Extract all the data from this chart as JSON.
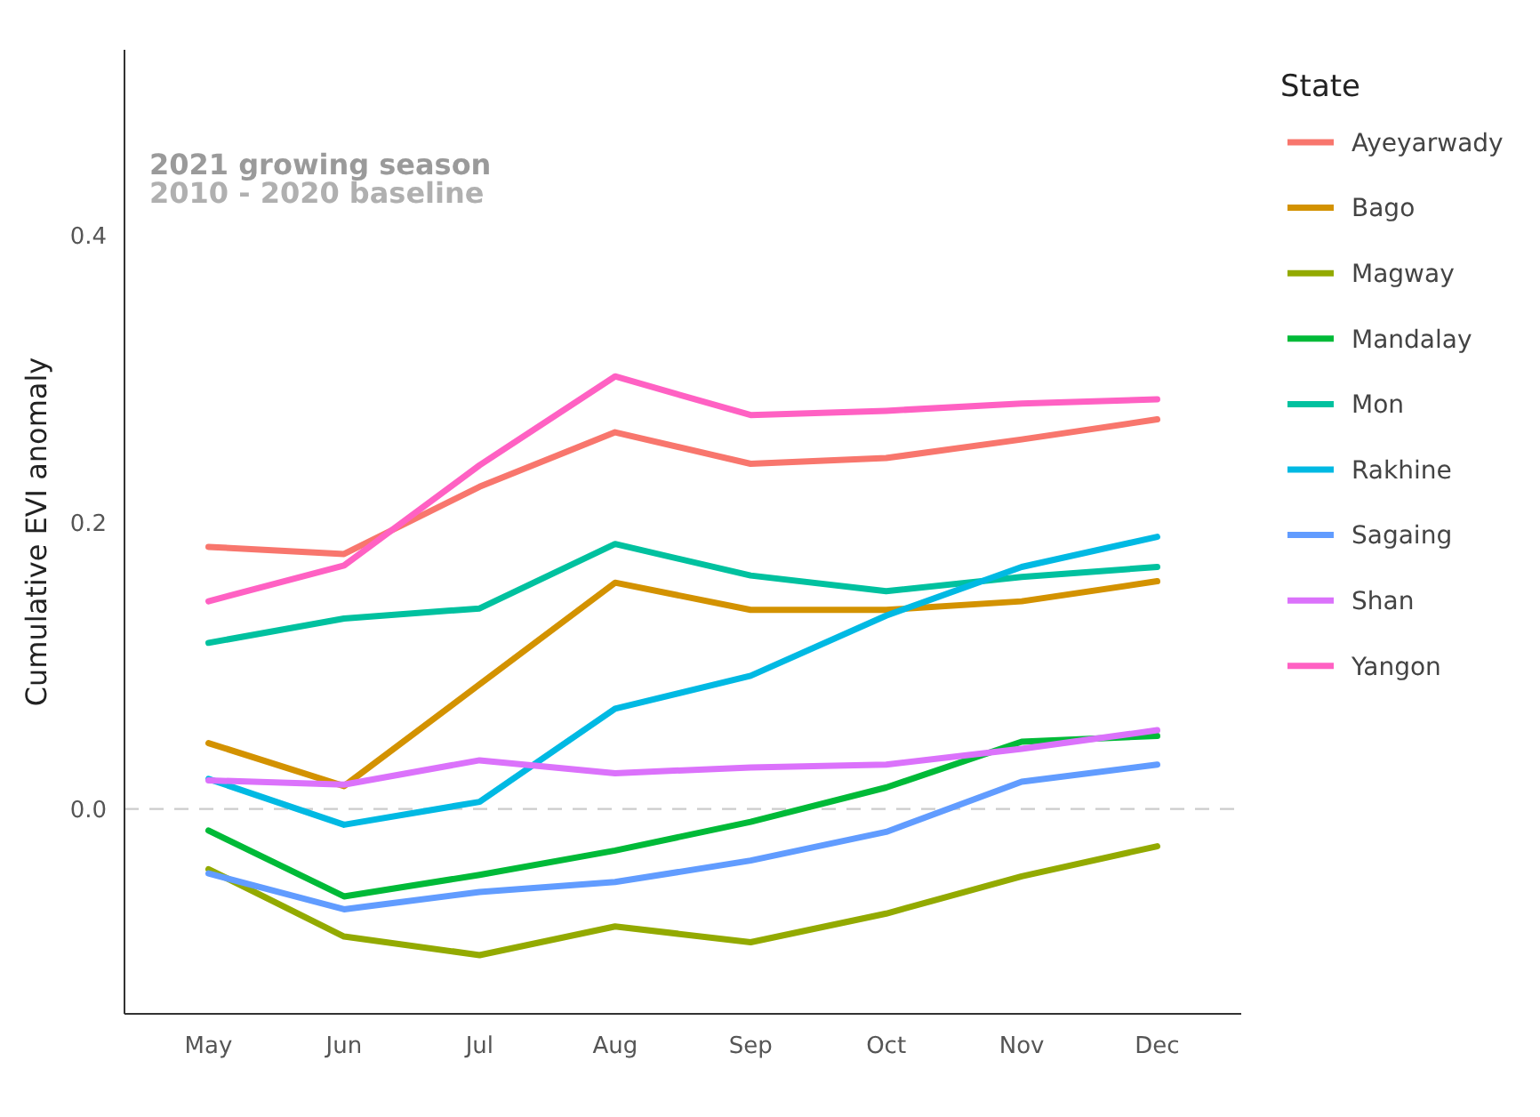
{
  "chart_data": {
    "type": "line",
    "ylabel": "Cumulative EVI anomaly",
    "legend_title": "State",
    "legend": "right",
    "grid": false,
    "categories": [
      "May",
      "Jun",
      "Jul",
      "Aug",
      "Sep",
      "Oct",
      "Nov",
      "Dec"
    ],
    "ylim": [
      -0.143,
      0.53
    ],
    "yticks": [
      {
        "value": 0,
        "label": "0.0"
      },
      0.2,
      0.4
    ],
    "ref_lines": [
      {
        "axis": "y",
        "value": 0,
        "color": "#cccccc",
        "line_style": "dashed"
      }
    ],
    "annotations": [
      "2021 growing season",
      "2010 - 2020 baseline"
    ],
    "series": [
      {
        "name": "Ayeyarwady",
        "color": "#f8766d",
        "values": [
          0.183,
          0.178,
          0.225,
          0.263,
          0.241,
          0.245,
          0.258,
          0.272
        ]
      },
      {
        "name": "Bago",
        "color": "#d39200",
        "values": [
          0.046,
          0.016,
          0.087,
          0.158,
          0.139,
          0.139,
          0.145,
          0.159
        ]
      },
      {
        "name": "Magway",
        "color": "#93aa00",
        "values": [
          -0.042,
          -0.089,
          -0.102,
          -0.082,
          -0.093,
          -0.073,
          -0.047,
          -0.026
        ]
      },
      {
        "name": "Mandalay",
        "color": "#00ba38",
        "values": [
          -0.015,
          -0.061,
          -0.046,
          -0.029,
          -0.009,
          0.015,
          0.047,
          0.051
        ]
      },
      {
        "name": "Mon",
        "color": "#00c19f",
        "values": [
          0.116,
          0.133,
          0.14,
          0.185,
          0.163,
          0.152,
          0.162,
          0.169
        ]
      },
      {
        "name": "Rakhine",
        "color": "#00b9e3",
        "values": [
          0.021,
          -0.011,
          0.005,
          0.07,
          0.093,
          0.135,
          0.169,
          0.19
        ]
      },
      {
        "name": "Sagaing",
        "color": "#619cff",
        "values": [
          -0.045,
          -0.07,
          -0.058,
          -0.051,
          -0.036,
          -0.016,
          0.019,
          0.031
        ]
      },
      {
        "name": "Shan",
        "color": "#db72fb",
        "values": [
          0.02,
          0.017,
          0.034,
          0.025,
          0.029,
          0.031,
          0.042,
          0.055
        ]
      },
      {
        "name": "Yangon",
        "color": "#ff61c3",
        "values": [
          0.145,
          0.17,
          0.24,
          0.302,
          0.275,
          0.278,
          0.283,
          0.286
        ]
      }
    ]
  }
}
